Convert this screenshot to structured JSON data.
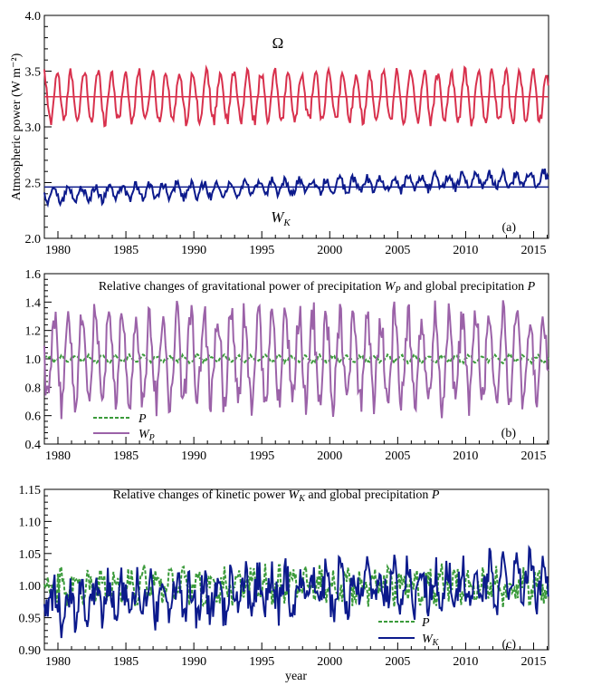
{
  "xlabel": "year",
  "x_ticks": [
    "1980",
    "1985",
    "1990",
    "1995",
    "2000",
    "2005",
    "2010",
    "2015"
  ],
  "chart_data": [
    {
      "type": "line",
      "panel_label": "(a)",
      "title": "",
      "ylabel": "Atmospheric power (W m⁻²)",
      "xlim": [
        1979.0,
        2016.1
      ],
      "ylim": [
        2.0,
        4.0
      ],
      "y_ticks": [
        "2.0",
        "2.5",
        "3.0",
        "3.5",
        "4.0"
      ],
      "series": [
        {
          "name": "Ω",
          "color": "#d8314d",
          "mean": 3.27,
          "amplitude": 0.22,
          "noise": 0.05,
          "trend": 0.0,
          "values_desc": "seasonal cycle between approx 2.9 and 3.7, peaks near 3.6 in 1993, 1997, 1999"
        },
        {
          "name": "W_K",
          "color": "#0c1a8c",
          "mean": 2.46,
          "amplitude": 0.06,
          "noise": 0.04,
          "trend": 0.004,
          "values_desc": "range approx 2.25 to 2.75, rising slightly after 1996"
        }
      ],
      "hlines": [
        {
          "y": 3.27,
          "color": "#d8314d"
        },
        {
          "y": 2.46,
          "color": "#0c1a8c"
        }
      ]
    },
    {
      "type": "line",
      "panel_label": "(b)",
      "title": "Relative changes of gravitational power of precipitation",
      "title_symbols": [
        "W",
        "P",
        "and global precipitation",
        "P"
      ],
      "xlim": [
        1979.0,
        2016.1
      ],
      "ylim": [
        0.4,
        1.6
      ],
      "y_ticks": [
        "0.4",
        "0.6",
        "0.8",
        "1.0",
        "1.2",
        "1.4",
        "1.6"
      ],
      "series": [
        {
          "name": "P",
          "color": "#3a9a3a",
          "dashed": true,
          "mean": 1.0,
          "amplitude": 0.02,
          "noise": 0.012
        },
        {
          "name": "W_P",
          "color": "#9b62a8",
          "dashed": false,
          "mean": 1.0,
          "amplitude": 0.3,
          "noise": 0.06
        }
      ],
      "legend": {
        "P": "P",
        "WP_base": "W",
        "WP_sub": "P"
      }
    },
    {
      "type": "line",
      "panel_label": "(c)",
      "title": "Relative changes of kinetic power",
      "title_symbols": [
        "W",
        "K",
        "and global precipitation",
        "P"
      ],
      "xlim": [
        1979.0,
        2016.1
      ],
      "ylim": [
        0.9,
        1.15
      ],
      "y_ticks": [
        "0.90",
        "0.95",
        "1.00",
        "1.05",
        "1.10",
        "1.15"
      ],
      "series": [
        {
          "name": "P",
          "color": "#3a9a3a",
          "dashed": true,
          "mean": 1.0,
          "amplitude": 0.015,
          "noise": 0.02
        },
        {
          "name": "W_K",
          "color": "#0c1a8c",
          "dashed": false,
          "mean": 0.99,
          "amplitude": 0.025,
          "noise": 0.03,
          "trend": 0.001
        }
      ],
      "legend": {
        "P": "P",
        "WK_base": "W",
        "WK_sub": "K"
      }
    }
  ]
}
